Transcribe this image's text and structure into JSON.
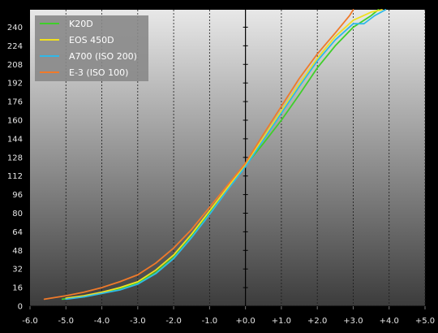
{
  "chart_data": {
    "type": "line",
    "title": "",
    "xlabel": "",
    "ylabel": "",
    "xlim": [
      -6.0,
      5.0
    ],
    "ylim": [
      0,
      255
    ],
    "x_ticks": [
      -6.0,
      -5.0,
      -4.0,
      -3.0,
      -2.0,
      -1.0,
      0.0,
      1.0,
      2.0,
      3.0,
      4.0,
      5.0
    ],
    "x_tick_labels": [
      "-6.0",
      "-5.0",
      "-4.0",
      "-3.0",
      "-2.0",
      "-1.0",
      "+0.0",
      "+1.0",
      "+2.0",
      "+3.0",
      "+4.0",
      "+5.0"
    ],
    "y_ticks": [
      0,
      16,
      32,
      48,
      64,
      80,
      96,
      112,
      128,
      144,
      160,
      176,
      192,
      208,
      224,
      240
    ],
    "y_tick_labels": [
      "0",
      "16",
      "32",
      "48",
      "64",
      "80",
      "96",
      "112",
      "128",
      "144",
      "160",
      "176",
      "192",
      "208",
      "224",
      "240"
    ],
    "grid": "vertical dashed",
    "legend_position": "top-left",
    "background_gradient": [
      "#e8e8e8",
      "#3c3c3c"
    ],
    "series": [
      {
        "name": "K20D",
        "color": "#3fcf2a",
        "points": [
          [
            -5.1,
            6
          ],
          [
            -4.5,
            8
          ],
          [
            -4.0,
            11
          ],
          [
            -3.5,
            15
          ],
          [
            -3.0,
            20
          ],
          [
            -2.5,
            29
          ],
          [
            -2.0,
            42
          ],
          [
            -1.5,
            60
          ],
          [
            -1.0,
            80
          ],
          [
            -0.5,
            100
          ],
          [
            0.0,
            121
          ],
          [
            0.5,
            140
          ],
          [
            1.0,
            160
          ],
          [
            1.5,
            182
          ],
          [
            2.0,
            205
          ],
          [
            2.5,
            224
          ],
          [
            3.0,
            240
          ],
          [
            3.5,
            250
          ],
          [
            3.7,
            255
          ]
        ]
      },
      {
        "name": "EOS 450D",
        "color": "#f0e020",
        "points": [
          [
            -5.0,
            7
          ],
          [
            -4.5,
            9
          ],
          [
            -4.0,
            12
          ],
          [
            -3.5,
            16
          ],
          [
            -3.0,
            21
          ],
          [
            -2.5,
            31
          ],
          [
            -2.0,
            44
          ],
          [
            -1.5,
            62
          ],
          [
            -1.0,
            82
          ],
          [
            -0.5,
            102
          ],
          [
            0.0,
            122
          ],
          [
            0.5,
            145
          ],
          [
            1.0,
            168
          ],
          [
            1.5,
            191
          ],
          [
            2.0,
            213
          ],
          [
            2.5,
            232
          ],
          [
            3.0,
            246
          ],
          [
            3.5,
            253
          ],
          [
            3.8,
            255
          ]
        ]
      },
      {
        "name": "A700 (ISO 200)",
        "color": "#30b8e8",
        "points": [
          [
            -5.0,
            6
          ],
          [
            -4.5,
            8
          ],
          [
            -4.0,
            11
          ],
          [
            -3.5,
            14
          ],
          [
            -3.0,
            19
          ],
          [
            -2.5,
            28
          ],
          [
            -2.0,
            41
          ],
          [
            -1.5,
            59
          ],
          [
            -1.0,
            79
          ],
          [
            -0.5,
            100
          ],
          [
            0.0,
            120
          ],
          [
            0.5,
            143
          ],
          [
            1.0,
            166
          ],
          [
            1.5,
            189
          ],
          [
            2.0,
            211
          ],
          [
            2.5,
            229
          ],
          [
            3.0,
            243
          ],
          [
            3.3,
            243
          ],
          [
            3.6,
            250
          ],
          [
            3.9,
            255
          ]
        ]
      },
      {
        "name": "E-3 (ISO 100)",
        "color": "#f07a2a",
        "points": [
          [
            -5.6,
            6
          ],
          [
            -5.0,
            9
          ],
          [
            -4.5,
            12
          ],
          [
            -4.0,
            16
          ],
          [
            -3.5,
            21
          ],
          [
            -3.0,
            27
          ],
          [
            -2.5,
            37
          ],
          [
            -2.0,
            50
          ],
          [
            -1.5,
            66
          ],
          [
            -1.0,
            85
          ],
          [
            -0.5,
            104
          ],
          [
            0.0,
            123
          ],
          [
            0.5,
            148
          ],
          [
            1.0,
            172
          ],
          [
            1.5,
            196
          ],
          [
            2.0,
            217
          ],
          [
            2.5,
            235
          ],
          [
            2.9,
            250
          ],
          [
            3.0,
            255
          ]
        ]
      }
    ]
  }
}
